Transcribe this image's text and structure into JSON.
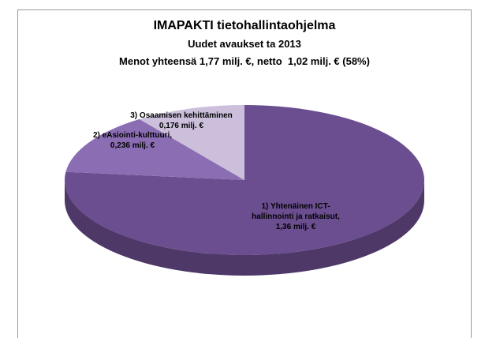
{
  "chart_data": {
    "type": "pie3d",
    "title": "IMAPAKTI tietohallintaohjelma",
    "subtitle": [
      "Uudet avaukset ta 2013",
      "Menot yhteensä 1,77 milj. €, netto  1,02 milj. € (58%)"
    ],
    "categories": [
      "1) Yhtenäinen ICT-hallinnointi ja ratkaisut,",
      "2) eAsiointi-kulttuuri,",
      "3) Osaamisen kehittäminen"
    ],
    "values": [
      1.36,
      0.236,
      0.176
    ],
    "value_labels": [
      "1,36 milj. €",
      "0,236 milj. €",
      "0,176 milj. €"
    ],
    "colors": [
      "#6b4e90",
      "#8b6db3",
      "#cbbfdb"
    ]
  }
}
